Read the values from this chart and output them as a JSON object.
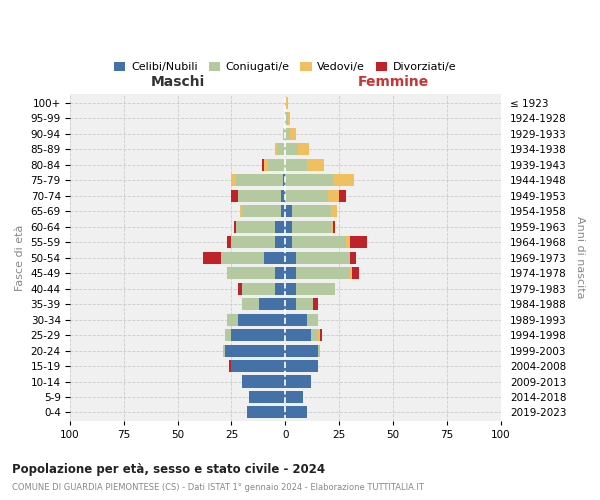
{
  "age_groups": [
    "0-4",
    "5-9",
    "10-14",
    "15-19",
    "20-24",
    "25-29",
    "30-34",
    "35-39",
    "40-44",
    "45-49",
    "50-54",
    "55-59",
    "60-64",
    "65-69",
    "70-74",
    "75-79",
    "80-84",
    "85-89",
    "90-94",
    "95-99",
    "100+"
  ],
  "birth_years": [
    "2019-2023",
    "2014-2018",
    "2009-2013",
    "2004-2008",
    "1999-2003",
    "1994-1998",
    "1989-1993",
    "1984-1988",
    "1979-1983",
    "1974-1978",
    "1969-1973",
    "1964-1968",
    "1959-1963",
    "1954-1958",
    "1949-1953",
    "1944-1948",
    "1939-1943",
    "1934-1938",
    "1929-1933",
    "1924-1928",
    "≤ 1923"
  ],
  "colors": {
    "celibe": "#4472a8",
    "coniugato": "#b5c9a0",
    "vedovo": "#f0c060",
    "divorziato": "#c0222a"
  },
  "maschi": {
    "celibe": [
      18,
      17,
      20,
      25,
      28,
      25,
      22,
      12,
      5,
      5,
      10,
      5,
      5,
      2,
      2,
      1,
      0,
      0,
      0,
      0,
      0
    ],
    "coniugato": [
      0,
      0,
      0,
      0,
      1,
      3,
      5,
      8,
      15,
      22,
      20,
      20,
      18,
      18,
      20,
      22,
      8,
      4,
      1,
      0,
      0
    ],
    "vedovo": [
      0,
      0,
      0,
      0,
      0,
      0,
      0,
      0,
      0,
      0,
      0,
      0,
      0,
      1,
      0,
      2,
      2,
      1,
      0,
      0,
      0
    ],
    "divorziato": [
      0,
      0,
      0,
      1,
      0,
      0,
      0,
      0,
      2,
      0,
      8,
      2,
      1,
      0,
      3,
      0,
      1,
      0,
      0,
      0,
      0
    ]
  },
  "femmine": {
    "nubile": [
      10,
      8,
      12,
      15,
      15,
      12,
      10,
      5,
      5,
      5,
      5,
      3,
      3,
      3,
      0,
      0,
      0,
      0,
      0,
      0,
      0
    ],
    "coniugata": [
      0,
      0,
      0,
      0,
      1,
      3,
      5,
      8,
      18,
      25,
      25,
      25,
      18,
      18,
      20,
      22,
      10,
      6,
      2,
      1,
      0
    ],
    "vedova": [
      0,
      0,
      0,
      0,
      0,
      1,
      0,
      0,
      0,
      1,
      0,
      2,
      1,
      3,
      5,
      10,
      8,
      5,
      3,
      1,
      1
    ],
    "divorziata": [
      0,
      0,
      0,
      0,
      0,
      1,
      0,
      2,
      0,
      3,
      3,
      8,
      1,
      0,
      3,
      0,
      0,
      0,
      0,
      0,
      0
    ]
  },
  "title_main": "Popolazione per età, sesso e stato civile - 2024",
  "title_sub": "COMUNE DI GUARDIA PIEMONTESE (CS) - Dati ISTAT 1° gennaio 2024 - Elaborazione TUTTITALIA.IT",
  "header_left": "Maschi",
  "header_right": "Femmine",
  "ylabel_left": "Fasce di età",
  "ylabel_right": "Anni di nascita",
  "xlim": 100,
  "xticks": [
    -100,
    -75,
    -50,
    -25,
    0,
    25,
    50,
    75,
    100
  ],
  "legend_labels": [
    "Celibi/Nubili",
    "Coniugati/e",
    "Vedovi/e",
    "Divorziati/e"
  ],
  "bg_color": "#ffffff",
  "grid_color": "#cccccc",
  "ax_bg": "#f0f0f0"
}
